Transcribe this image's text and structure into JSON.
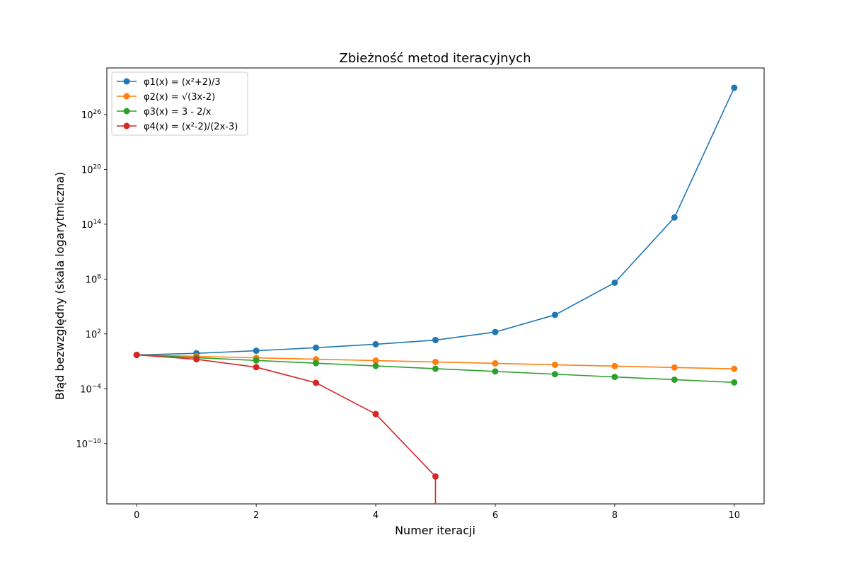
{
  "chart_data": {
    "type": "line",
    "title": "Zbieżność metod iteracyjnych",
    "xlabel": "Numer iteracji",
    "ylabel": "Błąd bezwzględny (skala logarytmiczna)",
    "yscale": "log",
    "xlim": [
      -0.5,
      10.5
    ],
    "ylim_exp": [
      -16.6,
      31.1
    ],
    "grid": true,
    "legend_position": "upper-left",
    "x_ticks": [
      0,
      2,
      4,
      6,
      8,
      10
    ],
    "y_ticks": [
      {
        "exp": -10,
        "label": "10",
        "sup": "−10"
      },
      {
        "exp": -4,
        "label": "10",
        "sup": "−4"
      },
      {
        "exp": 2,
        "label": "10",
        "sup": "2"
      },
      {
        "exp": 8,
        "label": "10",
        "sup": "8"
      },
      {
        "exp": 14,
        "label": "10",
        "sup": "14"
      },
      {
        "exp": 20,
        "label": "10",
        "sup": "20"
      },
      {
        "exp": 26,
        "label": "10",
        "sup": "26"
      }
    ],
    "series": [
      {
        "name": "φ1(x) = (x²+2)/3",
        "color": "#1f77b4",
        "x": [
          0,
          1,
          2,
          3,
          4,
          5,
          6,
          7,
          8,
          9,
          10
        ],
        "y": [
          0.5,
          0.75,
          1.44,
          3.1,
          7.4,
          21,
          160,
          12000.0,
          40000000.0,
          550000000000000.0,
          8.5e+28
        ]
      },
      {
        "name": "φ2(x) = √(3x-2)",
        "color": "#ff7f0e",
        "x": [
          0,
          1,
          2,
          3,
          4,
          5,
          6,
          7,
          8,
          9,
          10
        ],
        "y": [
          0.5,
          0.35,
          0.24,
          0.17,
          0.12,
          0.085,
          0.06,
          0.042,
          0.03,
          0.021,
          0.015
        ]
      },
      {
        "name": "φ3(x) = 3 - 2/x",
        "color": "#2ca02c",
        "x": [
          0,
          1,
          2,
          3,
          4,
          5,
          6,
          7,
          8,
          9,
          10
        ],
        "y": [
          0.5,
          0.25,
          0.125,
          0.0625,
          0.0313,
          0.0156,
          0.0078,
          0.0039,
          0.00195,
          0.00098,
          0.00049
        ]
      },
      {
        "name": "φ4(x) = (x²-2)/(2x-3)",
        "color": "#d62728",
        "x": [
          0,
          1,
          2,
          3,
          4,
          5
        ],
        "y": [
          0.5,
          0.167,
          0.0229,
          0.000444,
          1.7e-07,
          2.5e-14
        ],
        "drop_to_zero_after_last": true
      }
    ]
  }
}
